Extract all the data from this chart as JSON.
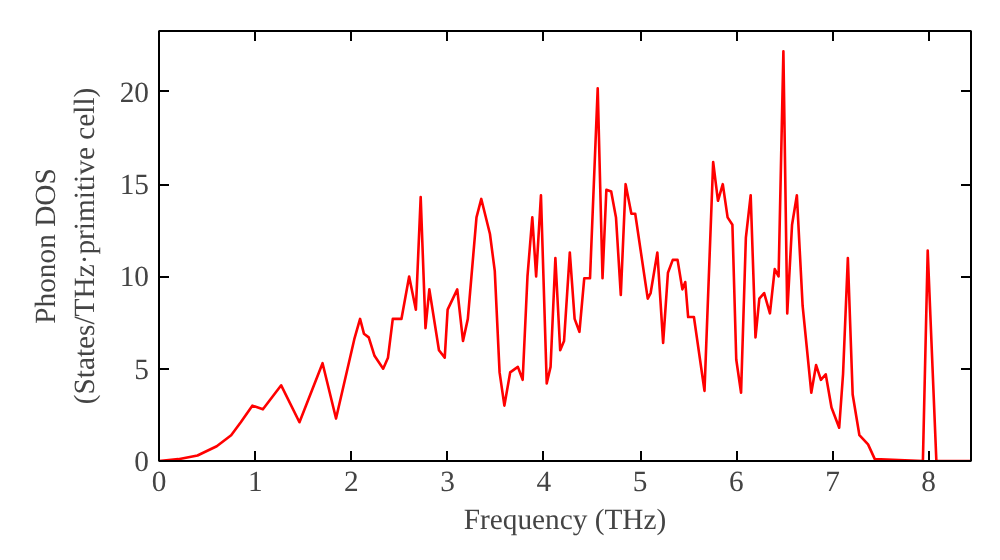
{
  "chart_data": {
    "type": "line",
    "xlabel": "Frequency (THz)",
    "ylabel": "Phonon DOS\n(States/THz·primitive cell)",
    "xlim": [
      0,
      8.44
    ],
    "ylim": [
      0,
      23.3
    ],
    "xticks": [
      0,
      1,
      2,
      3,
      4,
      5,
      6,
      7,
      8
    ],
    "yticks": [
      0,
      5,
      10,
      15,
      20
    ],
    "line_style": "solid",
    "series": [
      {
        "color": "#ff0000",
        "x": [
          0,
          0.2,
          0.4,
          0.6,
          0.75,
          0.85,
          0.97,
          1.08,
          1.27,
          1.46,
          1.7,
          1.84,
          2.03,
          2.09,
          2.13,
          2.18,
          2.24,
          2.33,
          2.38,
          2.43,
          2.52,
          2.6,
          2.67,
          2.72,
          2.77,
          2.81,
          2.91,
          2.97,
          3.0,
          3.1,
          3.16,
          3.21,
          3.3,
          3.35,
          3.44,
          3.49,
          3.54,
          3.59,
          3.65,
          3.73,
          3.78,
          3.83,
          3.88,
          3.92,
          3.97,
          4.03,
          4.07,
          4.12,
          4.17,
          4.21,
          4.27,
          4.32,
          4.37,
          4.42,
          4.48,
          4.56,
          4.61,
          4.65,
          4.7,
          4.75,
          4.8,
          4.85,
          4.91,
          4.95,
          5.08,
          5.11,
          5.18,
          5.24,
          5.29,
          5.34,
          5.39,
          5.44,
          5.47,
          5.5,
          5.56,
          5.67,
          5.76,
          5.81,
          5.86,
          5.91,
          5.96,
          6.0,
          6.05,
          6.1,
          6.15,
          6.2,
          6.24,
          6.29,
          6.35,
          6.4,
          6.44,
          6.49,
          6.53,
          6.58,
          6.63,
          6.69,
          6.78,
          6.83,
          6.88,
          6.93,
          6.99,
          7.07,
          7.11,
          7.16,
          7.21,
          7.28,
          7.37,
          7.44,
          7.94,
          7.99,
          8.08,
          8.44
        ],
        "values": [
          0,
          0.1,
          0.3,
          0.8,
          1.4,
          2.1,
          3.0,
          2.8,
          4.1,
          2.1,
          5.3,
          2.3,
          6.6,
          7.7,
          6.9,
          6.7,
          5.7,
          5.0,
          5.6,
          7.7,
          7.7,
          10.0,
          8.2,
          14.3,
          7.2,
          9.3,
          6.0,
          5.6,
          8.2,
          9.3,
          6.5,
          7.7,
          13.2,
          14.2,
          12.3,
          10.3,
          4.8,
          3.0,
          4.8,
          5.1,
          4.4,
          10.0,
          13.2,
          10.0,
          14.4,
          4.2,
          5.1,
          11.0,
          6.0,
          6.5,
          11.3,
          7.7,
          7.0,
          9.9,
          9.9,
          20.2,
          9.9,
          14.7,
          14.6,
          13.2,
          9.0,
          15.0,
          13.4,
          13.4,
          8.8,
          9.1,
          11.3,
          6.4,
          10.2,
          10.9,
          10.9,
          9.3,
          9.7,
          7.8,
          7.8,
          3.8,
          16.2,
          14.1,
          15.0,
          13.2,
          12.8,
          5.5,
          3.7,
          12.1,
          14.4,
          6.7,
          8.8,
          9.1,
          8.0,
          10.4,
          10.0,
          22.2,
          8.0,
          12.8,
          14.4,
          8.4,
          3.7,
          5.2,
          4.4,
          4.7,
          2.9,
          1.8,
          4.7,
          11.0,
          3.6,
          1.4,
          0.9,
          0.1,
          0,
          11.4,
          0,
          0
        ]
      }
    ]
  }
}
